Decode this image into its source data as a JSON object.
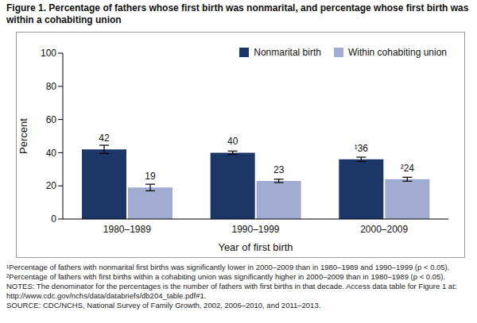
{
  "chart_data": {
    "type": "bar",
    "title": "Figure 1. Percentage of fathers whose first birth was nonmarital, and percentage whose first birth was within a cohabiting union",
    "categories": [
      "1980–1989",
      "1990–1999",
      "2000–2009"
    ],
    "series": [
      {
        "name": "Nonmarital birth",
        "color": "#1c3667",
        "values": [
          42,
          40,
          36
        ],
        "errors": [
          2.5,
          1,
          1.3
        ],
        "value_labels": [
          "42",
          "40",
          "¹36"
        ]
      },
      {
        "name": "Within cohabiting union",
        "color": "#a2abd0",
        "values": [
          19,
          23,
          24
        ],
        "errors": [
          2,
          1,
          1.2
        ],
        "value_labels": [
          "19",
          "23",
          "²24"
        ]
      }
    ],
    "x_label": "Year of first birth",
    "y_label": "Percent",
    "ylim": [
      0,
      100
    ],
    "yticks": [
      0,
      20,
      40,
      60,
      80,
      100
    ],
    "grid": false,
    "legend": "upper right",
    "data_labels": true,
    "footnotes": [
      "¹Percentage of fathers with nonmarital first births was significantly lower in 2000–2009 than in 1980–1989 and 1990–1999 (p < 0.05).",
      "²Percentage of fathers with first births within a cohabiting union was significantly higher in 2000–2009 than in 1980–1989 (p < 0.05).",
      "NOTES: The denominator for the percentages is the number of fathers with first births in that decade. Access data table for Figure 1 at: http://www.cdc.gov/nchs/data/databriefs/db204_table.pdf#1.",
      "SOURCE: CDC/NCHS, National Survey of Family Growth, 2002, 2006–2010, and 2011–2013."
    ]
  }
}
